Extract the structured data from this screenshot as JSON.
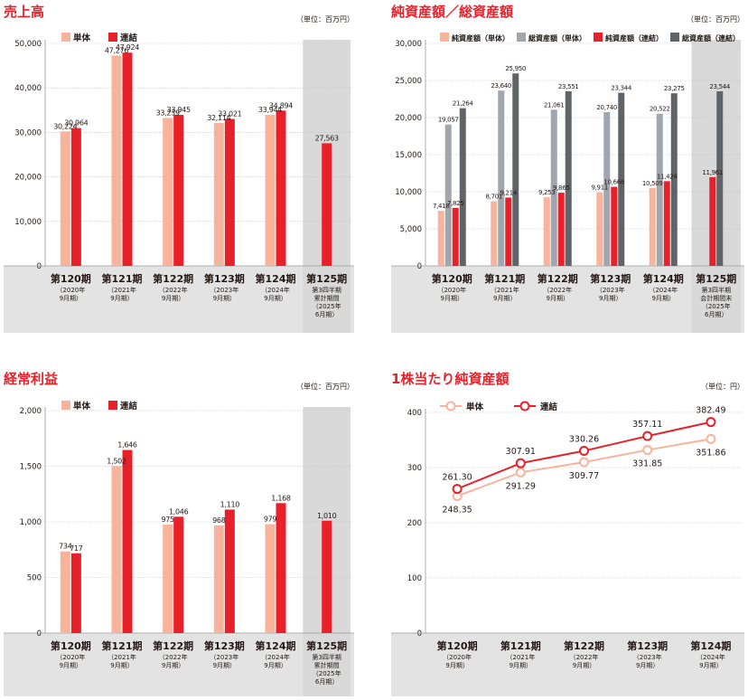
{
  "chart_data": [
    {
      "type": "bar",
      "title": "売上高",
      "unit": "（単位：百万円）",
      "legend": [
        "単体",
        "連結"
      ],
      "ylim": [
        0,
        50000
      ],
      "yticks": [
        "0",
        "10,000",
        "20,000",
        "30,000",
        "40,000",
        "50,000"
      ],
      "highlight_last": true,
      "categories": [
        {
          "period": "第120期",
          "sub": [
            "（2020年",
            "9月期）"
          ]
        },
        {
          "period": "第121期",
          "sub": [
            "（2021年",
            "9月期）"
          ]
        },
        {
          "period": "第122期",
          "sub": [
            "（2022年",
            "9月期）"
          ]
        },
        {
          "period": "第123期",
          "sub": [
            "（2023年",
            "9月期）"
          ]
        },
        {
          "period": "第124期",
          "sub": [
            "（2024年",
            "9月期）"
          ]
        },
        {
          "period": "第125期",
          "sub": [
            "第3四半期",
            "累計期間",
            "（2025年",
            "6月期）"
          ]
        }
      ],
      "series": [
        {
          "name": "単体",
          "color": "#f7b39b",
          "values": [
            30224,
            47276,
            33239,
            32114,
            33944,
            null
          ],
          "labels": [
            "30,224",
            "47,276",
            "33,239",
            "32,114",
            "33,944",
            ""
          ]
        },
        {
          "name": "連結",
          "color": "#e8202a",
          "values": [
            30964,
            47924,
            33945,
            33021,
            34894,
            27563
          ],
          "labels": [
            "30,964",
            "47,924",
            "33,945",
            "33,021",
            "34,894",
            "27,563"
          ]
        }
      ]
    },
    {
      "type": "bar",
      "title": "純資産額／総資産額",
      "unit": "（単位：百万円）",
      "legend": [
        "純資産額（単体）",
        "総資産額（単体）",
        "純資産額（連結）",
        "総資産額（連結）"
      ],
      "ylim": [
        0,
        30000
      ],
      "yticks": [
        "0",
        "5,000",
        "10,000",
        "15,000",
        "20,000",
        "25,000",
        "30,000"
      ],
      "highlight_last": true,
      "categories": [
        {
          "period": "第120期",
          "sub": [
            "（2020年",
            "9月期）"
          ]
        },
        {
          "period": "第121期",
          "sub": [
            "（2021年",
            "9月期）"
          ]
        },
        {
          "period": "第122期",
          "sub": [
            "（2022年",
            "9月期）"
          ]
        },
        {
          "period": "第123期",
          "sub": [
            "（2023年",
            "9月期）"
          ]
        },
        {
          "period": "第124期",
          "sub": [
            "（2024年",
            "9月期）"
          ]
        },
        {
          "period": "第125期",
          "sub": [
            "第3四半期",
            "会計期間末",
            "（2025年",
            "6月期）"
          ]
        }
      ],
      "series": [
        {
          "name": "純資産額（単体）",
          "color": "#f7b39b",
          "values": [
            7418,
            8701,
            9253,
            9911,
            10509,
            null
          ],
          "labels": [
            "7,418",
            "8,701",
            "9,253",
            "9,911",
            "10,509",
            ""
          ]
        },
        {
          "name": "総資産額（単体）",
          "color": "#9fa6ae",
          "values": [
            19057,
            23640,
            21061,
            20740,
            20522,
            null
          ],
          "labels": [
            "19,057",
            "23,640",
            "21,061",
            "20,740",
            "20,522",
            ""
          ]
        },
        {
          "name": "純資産額（連結）",
          "color": "#e8202a",
          "values": [
            7825,
            9214,
            9865,
            10666,
            11424,
            11961
          ],
          "labels": [
            "7,825",
            "9,214",
            "9,865",
            "10,666",
            "11,424",
            "11,961"
          ]
        },
        {
          "name": "総資産額（連結）",
          "color": "#5f6469",
          "values": [
            21264,
            25950,
            23551,
            23344,
            23275,
            23544
          ],
          "labels": [
            "21,264",
            "25,950",
            "23,551",
            "23,344",
            "23,275",
            "23,544"
          ]
        }
      ]
    },
    {
      "type": "bar",
      "title": "経常利益",
      "unit": "（単位：百万円）",
      "legend": [
        "単体",
        "連結"
      ],
      "ylim": [
        0,
        2000
      ],
      "yticks": [
        "0",
        "500",
        "1,000",
        "1,500",
        "2,000"
      ],
      "highlight_last": true,
      "categories": [
        {
          "period": "第120期",
          "sub": [
            "（2020年",
            "9月期）"
          ]
        },
        {
          "period": "第121期",
          "sub": [
            "（2021年",
            "9月期）"
          ]
        },
        {
          "period": "第122期",
          "sub": [
            "（2022年",
            "9月期）"
          ]
        },
        {
          "period": "第123期",
          "sub": [
            "（2023年",
            "9月期）"
          ]
        },
        {
          "period": "第124期",
          "sub": [
            "（2024年",
            "9月期）"
          ]
        },
        {
          "period": "第125期",
          "sub": [
            "第3四半期",
            "累計期間",
            "（2025年",
            "6月期）"
          ]
        }
      ],
      "series": [
        {
          "name": "単体",
          "color": "#f7b39b",
          "values": [
            734,
            1502,
            975,
            968,
            979,
            null
          ],
          "labels": [
            "734",
            "1,502",
            "975",
            "968",
            "979",
            ""
          ]
        },
        {
          "name": "連結",
          "color": "#e8202a",
          "values": [
            717,
            1646,
            1046,
            1110,
            1168,
            1010
          ],
          "labels": [
            "717",
            "1,646",
            "1,046",
            "1,110",
            "1,168",
            "1,010"
          ]
        }
      ]
    },
    {
      "type": "line",
      "title": "1株当たり純資産額",
      "unit": "（単位：円）",
      "legend": [
        "単体",
        "連結"
      ],
      "ylim": [
        0,
        400
      ],
      "yticks": [
        "0",
        "100",
        "200",
        "300",
        "400"
      ],
      "highlight_last": false,
      "categories": [
        {
          "period": "第120期",
          "sub": [
            "（2020年",
            "9月期）"
          ]
        },
        {
          "period": "第121期",
          "sub": [
            "（2021年",
            "9月期）"
          ]
        },
        {
          "period": "第122期",
          "sub": [
            "（2022年",
            "9月期）"
          ]
        },
        {
          "period": "第123期",
          "sub": [
            "（2023年",
            "9月期）"
          ]
        },
        {
          "period": "第124期",
          "sub": [
            "（2024年",
            "9月期）"
          ]
        }
      ],
      "series": [
        {
          "name": "単体",
          "color": "#f7b39b",
          "values": [
            248.35,
            291.29,
            309.77,
            331.85,
            351.86
          ],
          "labels": [
            "248.35",
            "291.29",
            "309.77",
            "331.85",
            "351.86"
          ]
        },
        {
          "name": "連結",
          "color": "#e8202a",
          "values": [
            261.3,
            307.91,
            330.26,
            357.11,
            382.49
          ],
          "labels": [
            "261.30",
            "307.91",
            "330.26",
            "357.11",
            "382.49"
          ]
        }
      ]
    }
  ]
}
